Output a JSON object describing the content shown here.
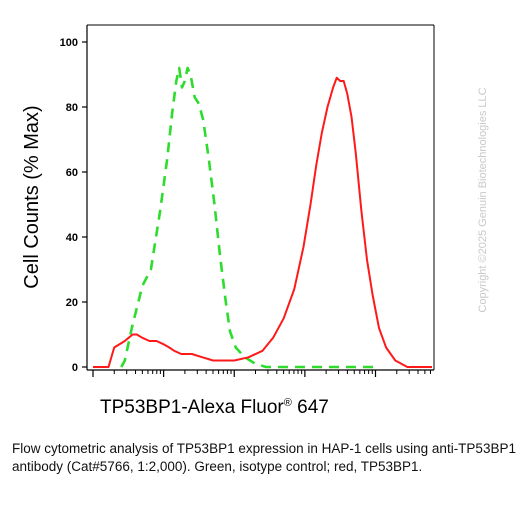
{
  "chart_data": {
    "type": "line",
    "xlabel": {
      "prefix": "TP53BP1-Alexa Fluor",
      "registered": "®",
      "suffix": " 647"
    },
    "ylabel": "Cell Counts (% Max)",
    "ylim": [
      0,
      100
    ],
    "yticks": [
      "0",
      "20",
      "40",
      "60",
      "80",
      "100"
    ],
    "xscale": "log (decade ticks, unlabeled)",
    "x_decades": [
      0,
      1,
      2,
      3,
      4
    ],
    "grid": false,
    "legend": "none",
    "series": [
      {
        "color": "#2ddc2d",
        "style": "dashed",
        "points": [
          [
            0.4,
            0
          ],
          [
            0.45,
            2
          ],
          [
            0.55,
            12
          ],
          [
            0.7,
            25
          ],
          [
            0.82,
            30
          ],
          [
            0.95,
            48
          ],
          [
            1.05,
            64
          ],
          [
            1.12,
            78
          ],
          [
            1.18,
            88
          ],
          [
            1.22,
            92
          ],
          [
            1.26,
            86
          ],
          [
            1.3,
            88
          ],
          [
            1.34,
            92
          ],
          [
            1.38,
            90
          ],
          [
            1.44,
            83
          ],
          [
            1.5,
            81
          ],
          [
            1.56,
            76
          ],
          [
            1.64,
            64
          ],
          [
            1.72,
            50
          ],
          [
            1.8,
            34
          ],
          [
            1.88,
            20
          ],
          [
            1.94,
            11
          ],
          [
            2.02,
            6
          ],
          [
            2.15,
            3
          ],
          [
            2.3,
            1
          ],
          [
            2.45,
            0
          ],
          [
            2.6,
            0
          ],
          [
            4.0,
            0
          ]
        ]
      },
      {
        "color": "#ff1a1a",
        "style": "solid",
        "points": [
          [
            0.0,
            0
          ],
          [
            0.22,
            0
          ],
          [
            0.3,
            6
          ],
          [
            0.45,
            8
          ],
          [
            0.56,
            10
          ],
          [
            0.62,
            10
          ],
          [
            0.7,
            9
          ],
          [
            0.8,
            8
          ],
          [
            0.9,
            8
          ],
          [
            1.0,
            7
          ],
          [
            1.08,
            6
          ],
          [
            1.15,
            5
          ],
          [
            1.25,
            4
          ],
          [
            1.4,
            4
          ],
          [
            1.55,
            3
          ],
          [
            1.7,
            2
          ],
          [
            1.85,
            2
          ],
          [
            2.0,
            2
          ],
          [
            2.2,
            3
          ],
          [
            2.4,
            5
          ],
          [
            2.55,
            9
          ],
          [
            2.7,
            15
          ],
          [
            2.85,
            24
          ],
          [
            2.98,
            37
          ],
          [
            3.08,
            50
          ],
          [
            3.16,
            62
          ],
          [
            3.24,
            72
          ],
          [
            3.32,
            80
          ],
          [
            3.4,
            86
          ],
          [
            3.45,
            89
          ],
          [
            3.5,
            88
          ],
          [
            3.55,
            88
          ],
          [
            3.6,
            84
          ],
          [
            3.66,
            77
          ],
          [
            3.72,
            66
          ],
          [
            3.8,
            48
          ],
          [
            3.88,
            33
          ],
          [
            3.96,
            22
          ],
          [
            4.05,
            12
          ],
          [
            4.15,
            6
          ],
          [
            4.28,
            2
          ],
          [
            4.45,
            0
          ],
          [
            4.8,
            0
          ]
        ]
      }
    ]
  },
  "watermark": "Copyright ©2025 Genuin Biotechnologies LLC",
  "caption": "Flow cytometric analysis of TP53BP1 expression in HAP-1 cells using anti-TP53BP1 antibody (Cat#5766, 1:2,000). Green, isotype control; red, TP53BP1."
}
